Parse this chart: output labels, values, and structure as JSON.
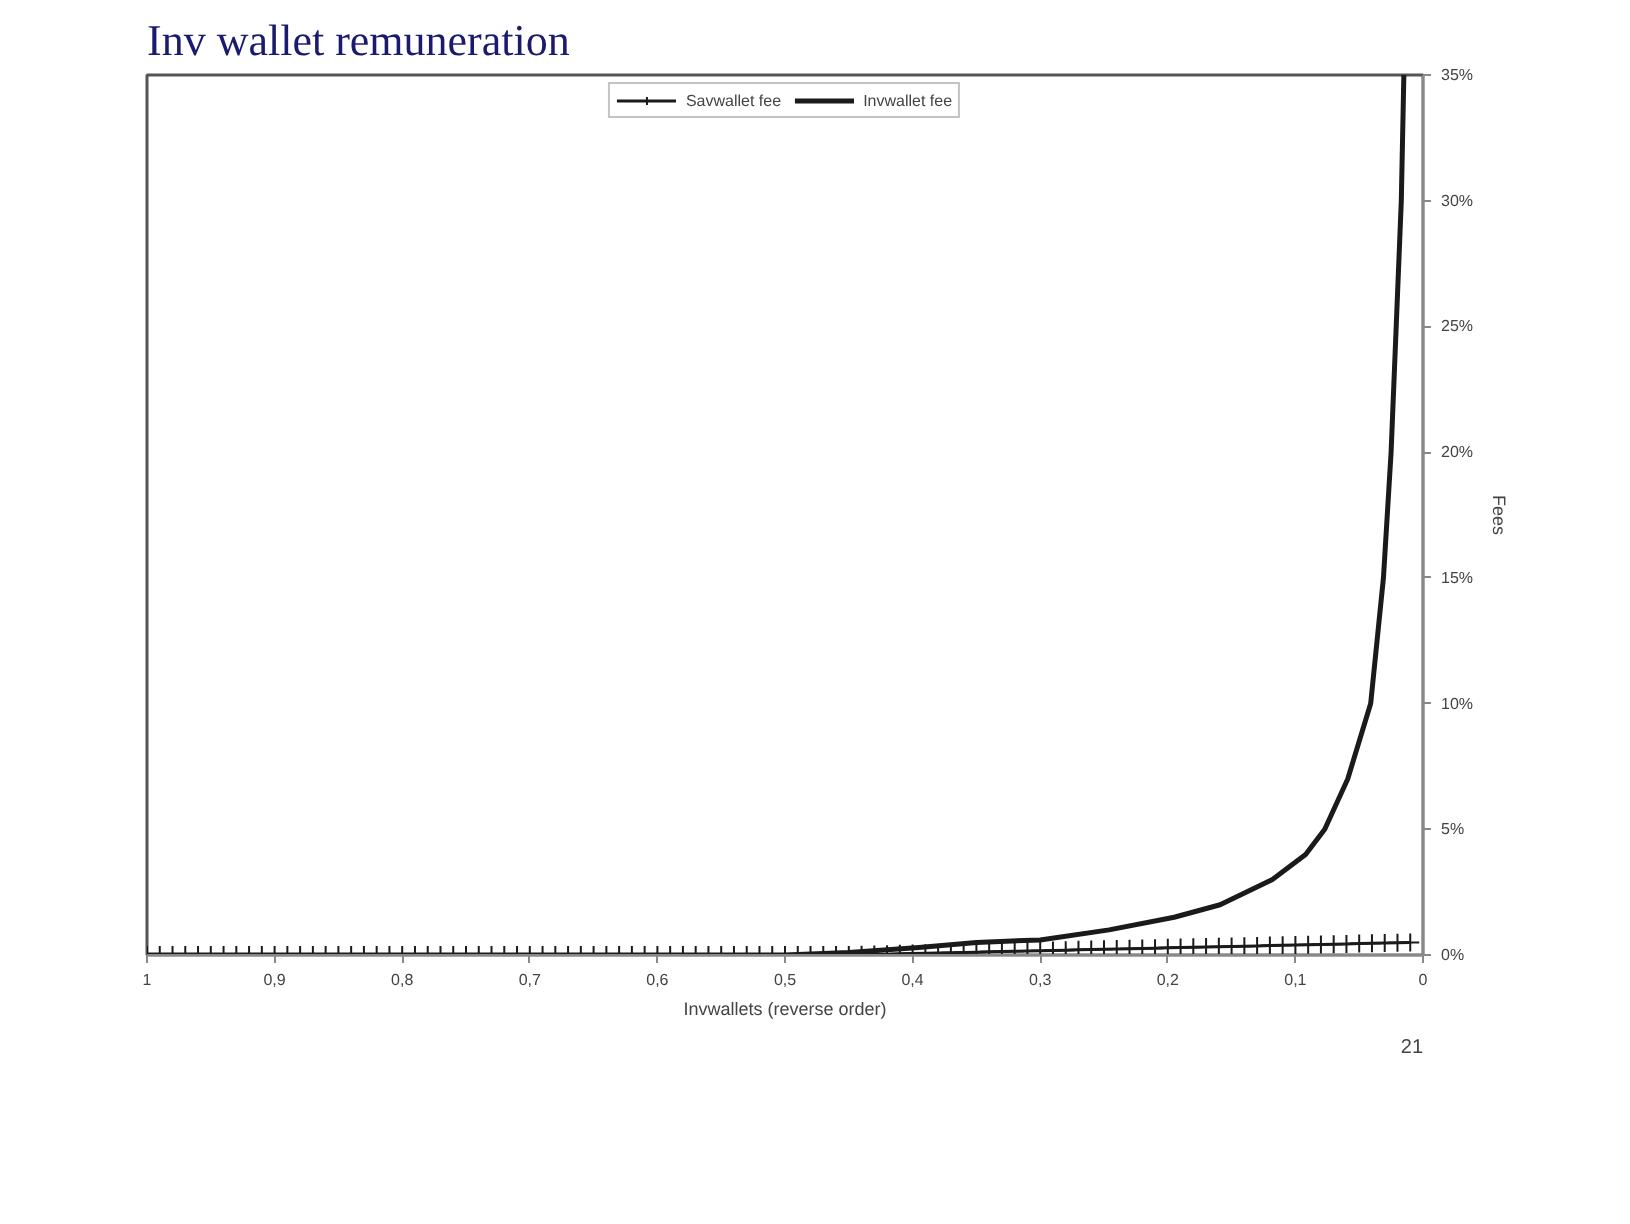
{
  "chart_data": {
    "type": "line",
    "title": "Inv wallet remuneration",
    "xlabel": "Invwallets (reverse order)",
    "ylabel": "Fees",
    "annotations": [
      "21"
    ],
    "x": [
      1,
      0.99,
      0.98,
      0.97,
      0.96,
      0.95,
      0.94,
      0.93,
      0.92,
      0.91,
      0.9,
      0.89,
      0.88,
      0.87,
      0.86,
      0.85,
      0.84,
      0.83,
      0.82,
      0.81,
      0.8,
      0.79,
      0.78,
      0.77,
      0.76,
      0.75,
      0.74,
      0.73,
      0.72,
      0.71,
      0.7,
      0.69,
      0.68,
      0.67,
      0.66,
      0.65,
      0.64,
      0.63,
      0.62,
      0.61,
      0.6,
      0.59,
      0.58,
      0.57,
      0.56,
      0.55,
      0.54,
      0.53,
      0.52,
      0.51,
      0.5,
      0.49,
      0.48,
      0.47,
      0.46,
      0.45,
      0.44,
      0.43,
      0.42,
      0.41,
      0.4,
      0.39,
      0.38,
      0.37,
      0.36,
      0.35,
      0.34,
      0.33,
      0.32,
      0.31,
      0.3,
      0.29,
      0.28,
      0.27,
      0.26,
      0.25,
      0.24,
      0.23,
      0.22,
      0.21,
      0.2,
      0.19,
      0.18,
      0.17,
      0.16,
      0.15,
      0.14,
      0.13,
      0.12,
      0.11,
      0.1,
      0.09,
      0.08,
      0.07,
      0.06,
      0.05,
      0.04,
      0.03,
      0.02,
      0.01
    ],
    "series": [
      {
        "name": "Savwallet fee",
        "color": "#1a1a1a",
        "marker": "cross",
        "values": [
          0,
          0,
          0,
          0,
          0,
          0,
          0,
          0,
          0,
          0,
          0,
          0,
          0,
          0,
          0,
          0,
          0,
          0,
          0,
          0,
          0,
          0,
          0,
          0,
          0,
          0,
          0,
          0,
          0,
          0,
          0,
          0,
          0,
          0,
          0,
          0,
          0,
          0,
          0,
          0,
          0,
          0,
          0,
          0,
          0,
          0,
          0,
          0,
          0,
          0,
          0,
          0,
          0,
          0,
          0,
          0,
          0.01,
          0.02,
          0.03,
          0.05,
          0.06,
          0.07,
          0.08,
          0.09,
          0.1,
          0.11,
          0.13,
          0.14,
          0.15,
          0.16,
          0.17,
          0.18,
          0.19,
          0.21,
          0.22,
          0.23,
          0.24,
          0.25,
          0.26,
          0.27,
          0.29,
          0.3,
          0.31,
          0.32,
          0.33,
          0.34,
          0.35,
          0.36,
          0.38,
          0.39,
          0.4,
          0.41,
          0.42,
          0.43,
          0.44,
          0.46,
          0.47,
          0.48,
          0.49,
          0.5
        ]
      },
      {
        "name": "Invwallet fee",
        "color": "#1a1a1a",
        "marker": "none",
        "x": [
          1,
          0.9,
          0.8,
          0.7,
          0.6,
          0.5,
          0.45,
          0.395,
          0.35,
          0.3,
          0.246,
          0.195,
          0.159,
          0.118,
          0.092,
          0.077,
          0.059,
          0.041,
          0.031,
          0.025,
          0.021,
          0.017,
          0.015
        ],
        "values": [
          0,
          0,
          0,
          0,
          0,
          0,
          0.1,
          0.3,
          0.5,
          0.6,
          1,
          1.5,
          2,
          3,
          4,
          5,
          7,
          10,
          15,
          20,
          25,
          30,
          35
        ]
      }
    ],
    "xlim": [
      1,
      0
    ],
    "xticks": [
      1,
      {
        "value": 0.9,
        "label": "0,9"
      },
      {
        "value": 0.8,
        "label": "0,8"
      },
      {
        "value": 0.7,
        "label": "0,7"
      },
      {
        "value": 0.6,
        "label": "0,6"
      },
      {
        "value": 0.5,
        "label": "0,5"
      },
      {
        "value": 0.4,
        "label": "0,4"
      },
      {
        "value": 0.3,
        "label": "0,3"
      },
      {
        "value": 0.2,
        "label": "0,2"
      },
      {
        "value": 0.1,
        "label": "0,1"
      },
      0
    ],
    "ylim": [
      0,
      35
    ],
    "yticks": [
      {
        "value": 0,
        "label": "0%"
      },
      {
        "value": 5,
        "label": "5%"
      },
      {
        "value": 10,
        "label": "10%"
      },
      {
        "value": 15,
        "label": "15%"
      },
      {
        "value": 20,
        "label": "20%"
      },
      {
        "value": 25,
        "label": "25%"
      },
      {
        "value": 30,
        "label": "30%"
      },
      {
        "value": 35,
        "label": "35%"
      }
    ],
    "grid": false,
    "legend": "top",
    "line_style": "solid"
  }
}
